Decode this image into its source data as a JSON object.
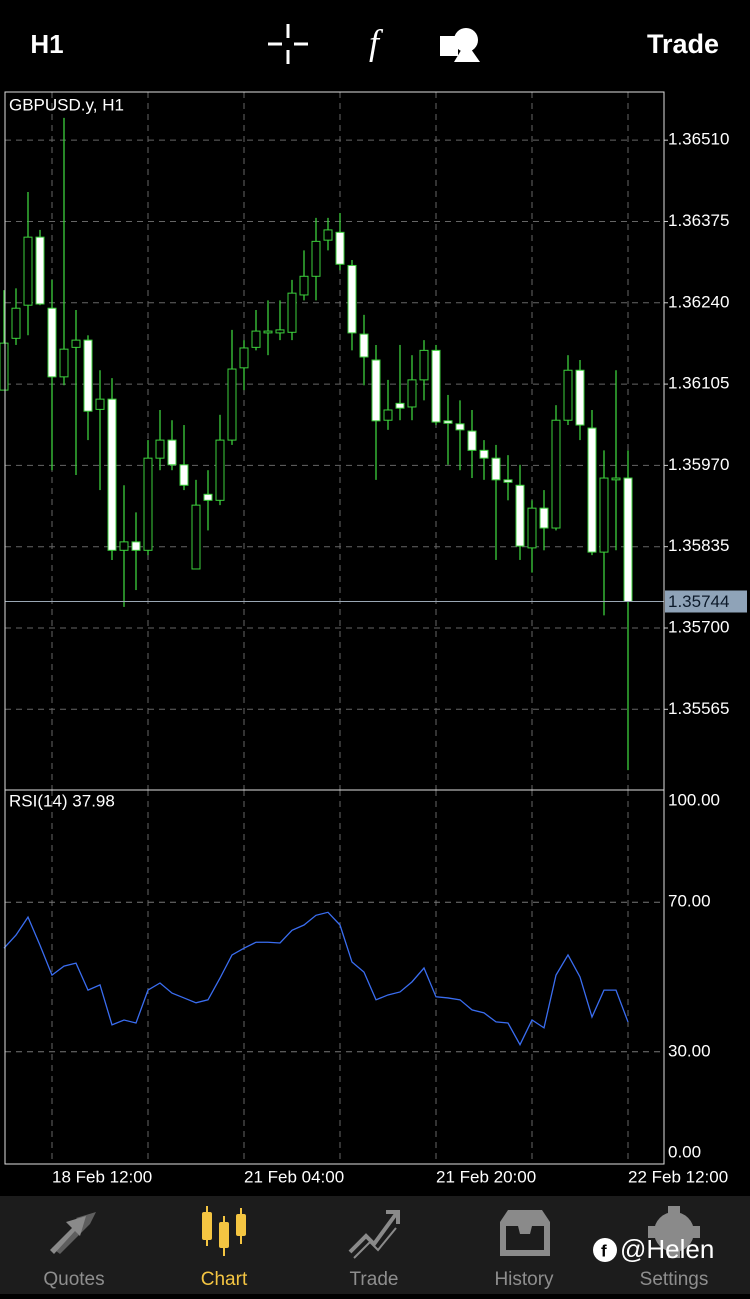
{
  "toolbar": {
    "timeframe": "H1",
    "trade": "Trade"
  },
  "chart_data": [
    {
      "type": "candlestick",
      "title": "GBPUSD.y, H1",
      "categories": [
        null,
        null,
        null,
        null,
        "18 Feb 12:00",
        null,
        null,
        null,
        null,
        null,
        null,
        null,
        null,
        null,
        null,
        null,
        null,
        null,
        null,
        null,
        "21 Feb 04:00",
        null,
        null,
        null,
        null,
        null,
        null,
        null,
        null,
        null,
        null,
        null,
        null,
        null,
        null,
        null,
        "21 Feb 20:00",
        null,
        null,
        null,
        null,
        null,
        null,
        null,
        null,
        null,
        null,
        null,
        null,
        null,
        null,
        null,
        "22 Feb 12:00"
      ],
      "open": [
        1.36095,
        1.36181,
        1.36236,
        1.36349,
        1.36231,
        1.36117,
        1.36166,
        1.36178,
        1.36063,
        1.3608,
        1.35829,
        1.35843,
        1.35829,
        1.35982,
        1.36012,
        1.35971,
        1.35798,
        1.35922,
        1.35912,
        1.36012,
        1.36132,
        1.36166,
        1.3619,
        1.3619,
        1.36191,
        1.36253,
        1.36284,
        1.36344,
        1.36357,
        1.36302,
        1.36188,
        1.36145,
        1.36045,
        1.36073,
        1.36067,
        1.36112,
        1.36161,
        1.36044,
        1.36039,
        1.36027,
        1.35995,
        1.35982,
        1.35946,
        1.35937,
        1.35833,
        1.35899,
        1.35866,
        1.36045,
        1.36128,
        1.36032,
        1.35826,
        1.35946,
        1.35949
      ],
      "high": [
        1.36261,
        1.36264,
        1.36424,
        1.36361,
        1.36278,
        1.36547,
        1.36228,
        1.36186,
        1.36128,
        1.36115,
        1.35937,
        1.35892,
        1.36012,
        1.36062,
        1.36045,
        1.36037,
        1.35946,
        1.35962,
        1.36054,
        1.36195,
        1.36178,
        1.36228,
        1.36244,
        1.36244,
        1.36278,
        1.36327,
        1.36381,
        1.36381,
        1.36389,
        1.36311,
        1.3622,
        1.3617,
        1.36112,
        1.3617,
        1.36153,
        1.36178,
        1.3617,
        1.36087,
        1.36078,
        1.36062,
        1.36012,
        1.36004,
        1.35987,
        1.35971,
        1.35912,
        1.35929,
        1.3607,
        1.36153,
        1.36145,
        1.36062,
        1.35995,
        1.36128,
        1.35995
      ],
      "low": [
        1.36095,
        1.3617,
        1.36186,
        1.36236,
        1.35962,
        1.36103,
        1.35954,
        1.36012,
        1.35929,
        1.35813,
        1.35735,
        1.35763,
        1.35821,
        1.35962,
        1.35962,
        1.35929,
        1.35798,
        1.35862,
        1.35904,
        1.36004,
        1.36095,
        1.36161,
        1.36153,
        1.36178,
        1.36178,
        1.36244,
        1.36244,
        1.36327,
        1.36294,
        1.36161,
        1.36103,
        1.35946,
        1.36029,
        1.36045,
        1.36045,
        1.36078,
        1.36037,
        1.35971,
        1.35962,
        1.35949,
        1.35946,
        1.35813,
        1.35912,
        1.35813,
        1.35792,
        1.35829,
        1.35862,
        1.36037,
        1.36012,
        1.35821,
        1.35721,
        1.35829,
        1.35464
      ],
      "close": [
        1.36173,
        1.36231,
        1.36349,
        1.36238,
        1.36117,
        1.36163,
        1.36178,
        1.3606,
        1.3608,
        1.35829,
        1.35843,
        1.35829,
        1.35982,
        1.36012,
        1.35971,
        1.35937,
        1.35904,
        1.35912,
        1.36012,
        1.3613,
        1.36165,
        1.36193,
        1.36193,
        1.36195,
        1.36256,
        1.36284,
        1.36342,
        1.36361,
        1.36304,
        1.3619,
        1.3615,
        1.36044,
        1.36062,
        1.36065,
        1.36112,
        1.36161,
        1.36042,
        1.3604,
        1.36029,
        1.35995,
        1.35982,
        1.35946,
        1.35942,
        1.35836,
        1.35899,
        1.35866,
        1.36045,
        1.36128,
        1.36037,
        1.35826,
        1.35949,
        1.35949,
        1.35744
      ],
      "color": "#3ccf3c",
      "up_fill": "#000000",
      "down_fill": "#ffffff",
      "current_price": 1.35744,
      "current_price_color": "#8fa3b8",
      "ylim": [
        1.35431,
        1.3659
      ],
      "yticks": [
        {
          "value": 1.3651,
          "label": "1.36510"
        },
        1.36375,
        {
          "value": 1.3624,
          "label": "1.36240"
        },
        1.36105,
        {
          "value": 1.3597,
          "label": "1.35970"
        },
        1.35835,
        {
          "value": 1.357,
          "label": "1.35700"
        },
        1.35565
      ],
      "grid": true
    },
    {
      "type": "line",
      "title": "RSI(14) 37.98",
      "values": [
        57.7,
        61.2,
        66.0,
        58.5,
        50.5,
        52.9,
        53.7,
        46.5,
        47.9,
        37.2,
        38.5,
        37.7,
        46.5,
        48.4,
        45.7,
        44.4,
        43.1,
        43.9,
        49.7,
        55.9,
        57.7,
        59.3,
        59.3,
        59.1,
        62.5,
        63.9,
        66.5,
        67.3,
        63.9,
        54.0,
        51.3,
        43.9,
        45.2,
        46.0,
        48.7,
        52.4,
        44.7,
        44.4,
        43.9,
        41.2,
        40.4,
        38.0,
        37.7,
        31.9,
        38.5,
        36.4,
        50.5,
        55.9,
        50.0,
        39.3,
        46.5,
        46.5,
        37.98
      ],
      "color": "#3a6df0",
      "ylim": [
        0,
        100
      ],
      "yticks": [
        {
          "value": 100,
          "label": "100.00"
        },
        {
          "value": 70,
          "label": "70.00"
        },
        {
          "value": 30,
          "label": "30.00"
        },
        {
          "value": 0,
          "label": "0.00"
        }
      ],
      "grid": true
    }
  ],
  "tab_bar": {
    "tabs": [
      "Quotes",
      "Chart",
      "Trade",
      "History",
      "Settings"
    ],
    "active": 1
  },
  "watermark": "@Helen"
}
